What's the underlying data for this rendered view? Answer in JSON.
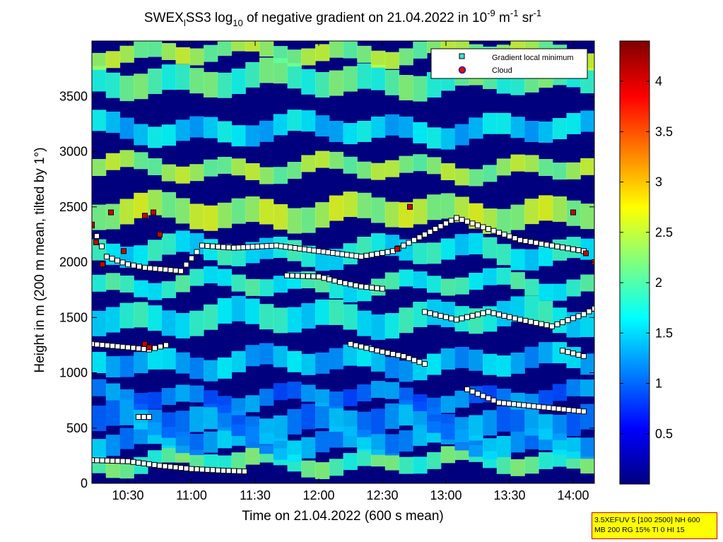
{
  "chart_data": {
    "type": "heatmap",
    "title_parts": {
      "a": "SWEX",
      "a_sub": "l",
      "b": "SS3 log",
      "b_sub": "10",
      "c": " of negative gradient on 21.04.2022 in 10",
      "c_sup": "-9",
      "d": " m",
      "d_sup": "-1",
      "e": " sr",
      "e_sup": "-1"
    },
    "xlabel": "Time on 21.04.2022 (600 s mean)",
    "ylabel": "Height in m (200 m mean, tilted by 1°)",
    "xlim": [
      "10:13",
      "14:10"
    ],
    "ylim": [
      0,
      4000
    ],
    "x_ticks": [
      "10:30",
      "11:00",
      "11:30",
      "12:00",
      "12:30",
      "13:00",
      "13:30",
      "14:00"
    ],
    "y_ticks": [
      "0",
      "500",
      "1000",
      "1500",
      "2000",
      "2500",
      "3000",
      "3500"
    ],
    "colorbar": {
      "colormap": "jet",
      "range": [
        0,
        4.4
      ],
      "ticks": [
        "0.5",
        "1",
        "1.5",
        "2",
        "2.5",
        "3",
        "3.5",
        "4"
      ]
    },
    "legend": {
      "placement": "top-right",
      "entries": [
        {
          "label": "Gradient local minimum",
          "marker": "square",
          "color": "#40e0d0"
        },
        {
          "label": "Cloud",
          "marker": "circle",
          "color": "#ff0000"
        }
      ]
    },
    "layers": [
      {
        "y": 200,
        "value": 2.0
      },
      {
        "y": 380,
        "value": 1.3
      },
      {
        "y": 560,
        "value": 1.2
      },
      {
        "y": 780,
        "value": 1.1
      },
      {
        "y": 1100,
        "value": 1.4
      },
      {
        "y": 1500,
        "value": 1.7
      },
      {
        "y": 1800,
        "value": 1.8
      },
      {
        "y": 2100,
        "value": 1.7
      },
      {
        "y": 2450,
        "value": 2.4
      },
      {
        "y": 2850,
        "value": 2.3
      },
      {
        "y": 3200,
        "value": 1.5
      },
      {
        "y": 3650,
        "value": 2.0
      },
      {
        "y": 3900,
        "value": 2.3
      }
    ],
    "minima_series": [
      {
        "name": "lowest",
        "points": [
          [
            "10:13",
            210
          ],
          [
            "10:30",
            200
          ],
          [
            "10:45",
            160
          ],
          [
            "11:00",
            130
          ],
          [
            "11:15",
            115
          ],
          [
            "11:25",
            108
          ]
        ]
      },
      {
        "name": "a",
        "points": [
          [
            "10:13",
            1260
          ],
          [
            "10:30",
            1230
          ],
          [
            "10:40",
            1210
          ],
          [
            "10:48",
            1250
          ]
        ]
      },
      {
        "name": "b",
        "points": [
          [
            "10:13",
            2330
          ],
          [
            "10:20",
            2050
          ],
          [
            "10:30",
            1980
          ],
          [
            "10:38",
            1950
          ],
          [
            "10:55",
            1920
          ],
          [
            "11:05",
            2150
          ],
          [
            "11:20",
            2130
          ],
          [
            "11:40",
            2150
          ],
          [
            "12:00",
            2100
          ],
          [
            "12:20",
            2050
          ],
          [
            "12:35",
            2100
          ],
          [
            "12:50",
            2250
          ],
          [
            "13:05",
            2400
          ],
          [
            "13:20",
            2300
          ],
          [
            "13:35",
            2200
          ],
          [
            "13:50",
            2150
          ],
          [
            "14:05",
            2100
          ]
        ]
      },
      {
        "name": "c",
        "points": [
          [
            "11:45",
            1880
          ],
          [
            "12:00",
            1870
          ],
          [
            "12:10",
            1820
          ],
          [
            "12:20",
            1780
          ],
          [
            "12:30",
            1760
          ]
        ]
      },
      {
        "name": "d",
        "points": [
          [
            "12:50",
            1550
          ],
          [
            "13:05",
            1480
          ],
          [
            "13:20",
            1550
          ],
          [
            "13:35",
            1480
          ],
          [
            "13:50",
            1420
          ],
          [
            "14:05",
            1530
          ],
          [
            "14:10",
            1580
          ]
        ]
      },
      {
        "name": "e",
        "points": [
          [
            "12:15",
            1260
          ],
          [
            "12:30",
            1190
          ],
          [
            "12:40",
            1150
          ],
          [
            "12:50",
            1080
          ]
        ]
      },
      {
        "name": "f",
        "points": [
          [
            "13:55",
            1200
          ],
          [
            "14:05",
            1150
          ]
        ]
      },
      {
        "name": "g",
        "points": [
          [
            "10:35",
            600
          ],
          [
            "10:40",
            600
          ]
        ]
      },
      {
        "name": "h",
        "points": [
          [
            "13:10",
            850
          ],
          [
            "13:25",
            730
          ],
          [
            "14:05",
            650
          ]
        ]
      }
    ],
    "clouds": [
      [
        "10:13",
        2340
      ],
      [
        "10:15",
        2180
      ],
      [
        "10:18",
        1980
      ],
      [
        "10:22",
        2450
      ],
      [
        "10:28",
        2100
      ],
      [
        "10:38",
        2420
      ],
      [
        "10:42",
        2450
      ],
      [
        "10:45",
        2250
      ],
      [
        "10:38",
        1260
      ],
      [
        "10:40",
        1230
      ],
      [
        "12:43",
        2500
      ],
      [
        "12:37",
        2120
      ],
      [
        "14:00",
        2450
      ],
      [
        "14:06",
        2080
      ],
      [
        "14:10",
        2000
      ]
    ]
  },
  "info_box": {
    "line1": "3.5XEFUV 5 [100 2500] NH 600",
    "line2": "MB 200 RG 15% TI 0 HI 15"
  }
}
